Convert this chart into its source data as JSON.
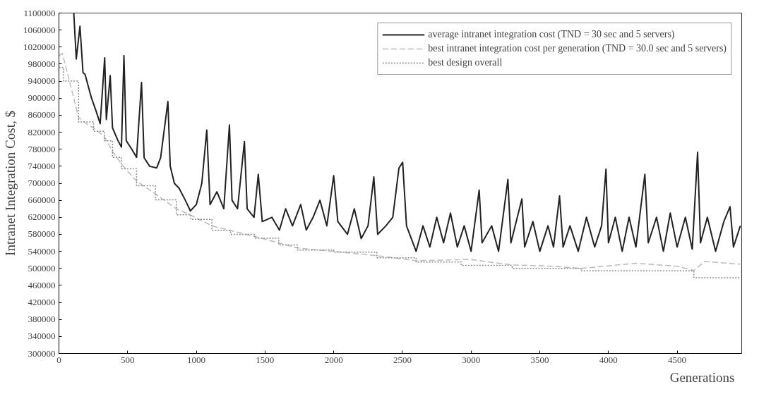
{
  "chart_data": {
    "type": "line",
    "xlabel": "Generations",
    "ylabel": "Intranet Integration Cost, $",
    "xlim": [
      0,
      4970
    ],
    "xticks": [
      0,
      500,
      1000,
      1500,
      2000,
      2500,
      3000,
      3500,
      4000,
      4500
    ],
    "ylim": [
      300000,
      1100000
    ],
    "yticks": [
      300000,
      340000,
      380000,
      420000,
      460000,
      500000,
      540000,
      580000,
      620000,
      660000,
      700000,
      740000,
      780000,
      820000,
      860000,
      900000,
      940000,
      980000,
      1020000,
      1060000,
      1100000
    ],
    "grid": false,
    "legend": "top right",
    "marker": "none",
    "series": [
      {
        "name": "average intranet integration cost (TND = 30 sec and 5 servers)",
        "color": "#222222",
        "line_style": "solid",
        "x": [
          108,
          126,
          153,
          175,
          190,
          236,
          270,
          300,
          333,
          345,
          373,
          390,
          430,
          455,
          473,
          490,
          530,
          565,
          601,
          620,
          660,
          711,
          740,
          793,
          810,
          840,
          875,
          920,
          957,
          1000,
          1040,
          1076,
          1100,
          1150,
          1200,
          1241,
          1260,
          1300,
          1350,
          1370,
          1420,
          1451,
          1480,
          1550,
          1605,
          1650,
          1700,
          1760,
          1800,
          1850,
          1900,
          1950,
          2000,
          2030,
          2100,
          2150,
          2200,
          2250,
          2292,
          2320,
          2380,
          2430,
          2475,
          2502,
          2530,
          2600,
          2650,
          2700,
          2750,
          2800,
          2850,
          2900,
          2950,
          3000,
          3059,
          3080,
          3150,
          3200,
          3268,
          3290,
          3370,
          3390,
          3450,
          3500,
          3560,
          3600,
          3644,
          3670,
          3720,
          3780,
          3840,
          3900,
          3950,
          3982,
          4000,
          4050,
          4100,
          4150,
          4200,
          4265,
          4290,
          4350,
          4400,
          4450,
          4500,
          4560,
          4610,
          4649,
          4670,
          4720,
          4780,
          4840,
          4885,
          4910,
          4960
        ],
        "values": [
          1100000,
          992000,
          1069000,
          960000,
          956000,
          901000,
          870000,
          840000,
          995000,
          850000,
          953000,
          830000,
          800000,
          785000,
          1000000,
          800000,
          780000,
          761000,
          937000,
          760000,
          740000,
          736000,
          760000,
          892000,
          740000,
          700000,
          688000,
          660000,
          635000,
          650000,
          700000,
          825000,
          650000,
          680000,
          640000,
          837000,
          660000,
          640000,
          798000,
          640000,
          620000,
          721000,
          610000,
          620000,
          590000,
          640000,
          600000,
          650000,
          590000,
          620000,
          660000,
          600000,
          718000,
          610000,
          580000,
          640000,
          570000,
          600000,
          715000,
          580000,
          600000,
          620000,
          736000,
          749000,
          600000,
          540000,
          600000,
          550000,
          620000,
          560000,
          630000,
          550000,
          600000,
          540000,
          684000,
          560000,
          600000,
          540000,
          709000,
          560000,
          663000,
          550000,
          610000,
          540000,
          600000,
          550000,
          670000,
          550000,
          600000,
          540000,
          620000,
          550000,
          600000,
          733000,
          560000,
          620000,
          540000,
          620000,
          550000,
          721000,
          560000,
          620000,
          540000,
          630000,
          550000,
          620000,
          545000,
          773000,
          560000,
          620000,
          540000,
          610000,
          645000,
          550000,
          600000
        ]
      },
      {
        "name": "best intranet integration cost per generation (TND = 30.0 sec and 5 servers)",
        "color": "#bbbbbb",
        "line_style": "dashed",
        "x": [
          0,
          25,
          71,
          143,
          200,
          252,
          330,
          390,
          455,
          565,
          702,
          855,
          960,
          1113,
          1425,
          1735,
          2314,
          2600,
          2993,
          3300,
          3600,
          3800,
          4200,
          4500,
          4622,
          4640,
          4700,
          4960
        ],
        "values": [
          1000000,
          1005000,
          947000,
          855000,
          840000,
          830000,
          810000,
          775000,
          745000,
          705000,
          675000,
          640000,
          625000,
          600000,
          575000,
          548000,
          530000,
          518000,
          521000,
          508000,
          505000,
          500000,
          512000,
          505000,
          495000,
          500000,
          516000,
          510000
        ]
      },
      {
        "name": "best design overall",
        "type": "step",
        "color": "#888888",
        "line_style": "dotted",
        "x": [
          0,
          33,
          143,
          252,
          330,
          390,
          455,
          565,
          702,
          855,
          960,
          1113,
          1250,
          1425,
          1600,
          1735,
          2000,
          2314,
          2600,
          2928,
          3300,
          3800,
          4622,
          4960
        ],
        "values": [
          972000,
          940000,
          844000,
          822000,
          800000,
          761000,
          734000,
          694000,
          661000,
          626000,
          615000,
          589000,
          580000,
          571000,
          555000,
          543000,
          538000,
          525000,
          515000,
          507000,
          500000,
          494000,
          478000,
          478000
        ]
      }
    ]
  }
}
